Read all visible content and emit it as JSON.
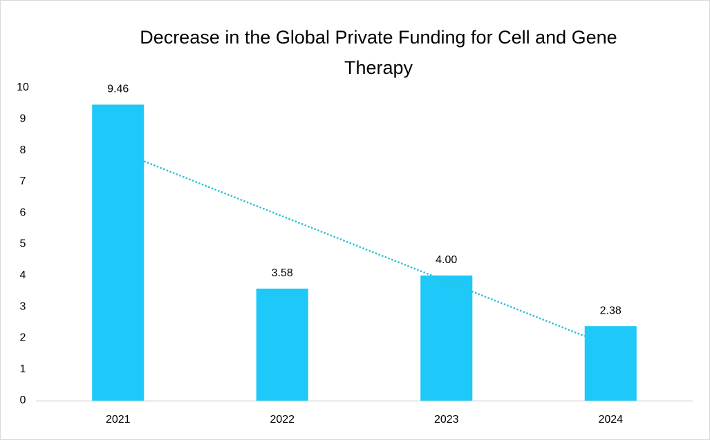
{
  "chart_data": {
    "type": "bar",
    "title": "Decrease in the Global Private Funding for Cell and Gene Therapy",
    "categories": [
      "2021",
      "2022",
      "2023",
      "2024"
    ],
    "values": [
      9.46,
      3.58,
      4.0,
      2.38
    ],
    "value_labels": [
      "9.46",
      "3.58",
      "4.00",
      "2.38"
    ],
    "color": "#1ec8f8",
    "ylim": [
      0,
      10
    ],
    "yticks": [
      0,
      1,
      2,
      3,
      4,
      5,
      6,
      7,
      8,
      9,
      10
    ],
    "grid": false,
    "trendline": {
      "type": "linear",
      "color": "#2cc3d6",
      "style": "dotted"
    }
  }
}
